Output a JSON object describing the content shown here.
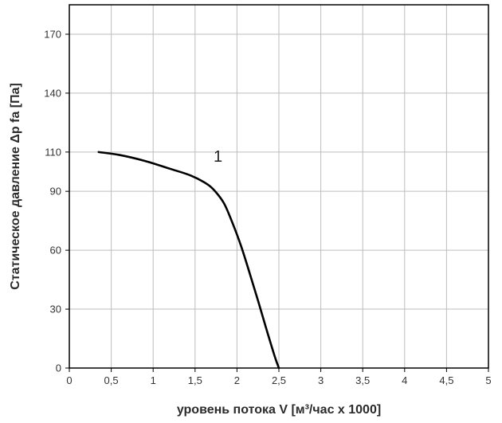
{
  "chart_data": {
    "type": "line",
    "xlabel": "уровень потока  V [м³/час x 1000]",
    "ylabel": "Статическое давление  Δp fa [Па]",
    "xlim": [
      0,
      5
    ],
    "ylim": [
      0,
      185
    ],
    "x_ticks": [
      0,
      0.5,
      1,
      1.5,
      2,
      2.5,
      3,
      3.5,
      4,
      4.5,
      5
    ],
    "x_tick_labels": [
      "0",
      "0,5",
      "1",
      "1,5",
      "2",
      "2,5",
      "3",
      "3,5",
      "4",
      "4,5",
      "5"
    ],
    "y_ticks": [
      0,
      30,
      60,
      90,
      110,
      140,
      170
    ],
    "y_tick_labels": [
      "0",
      "30",
      "60",
      "90",
      "110",
      "140",
      "170"
    ],
    "grid": true,
    "series": [
      {
        "name": "1",
        "color": "#000000",
        "x": [
          0.35,
          0.6,
          0.9,
          1.2,
          1.45,
          1.65,
          1.75,
          1.85,
          1.95,
          2.05,
          2.15,
          2.25,
          2.35,
          2.45,
          2.5
        ],
        "y": [
          110,
          108.5,
          105.5,
          101.5,
          98,
          93.5,
          89.5,
          83.5,
          73.5,
          62,
          48.5,
          34.5,
          20,
          6,
          0
        ]
      }
    ],
    "annotations": [
      {
        "text": "1",
        "x": 1.72,
        "y": 105
      }
    ]
  }
}
